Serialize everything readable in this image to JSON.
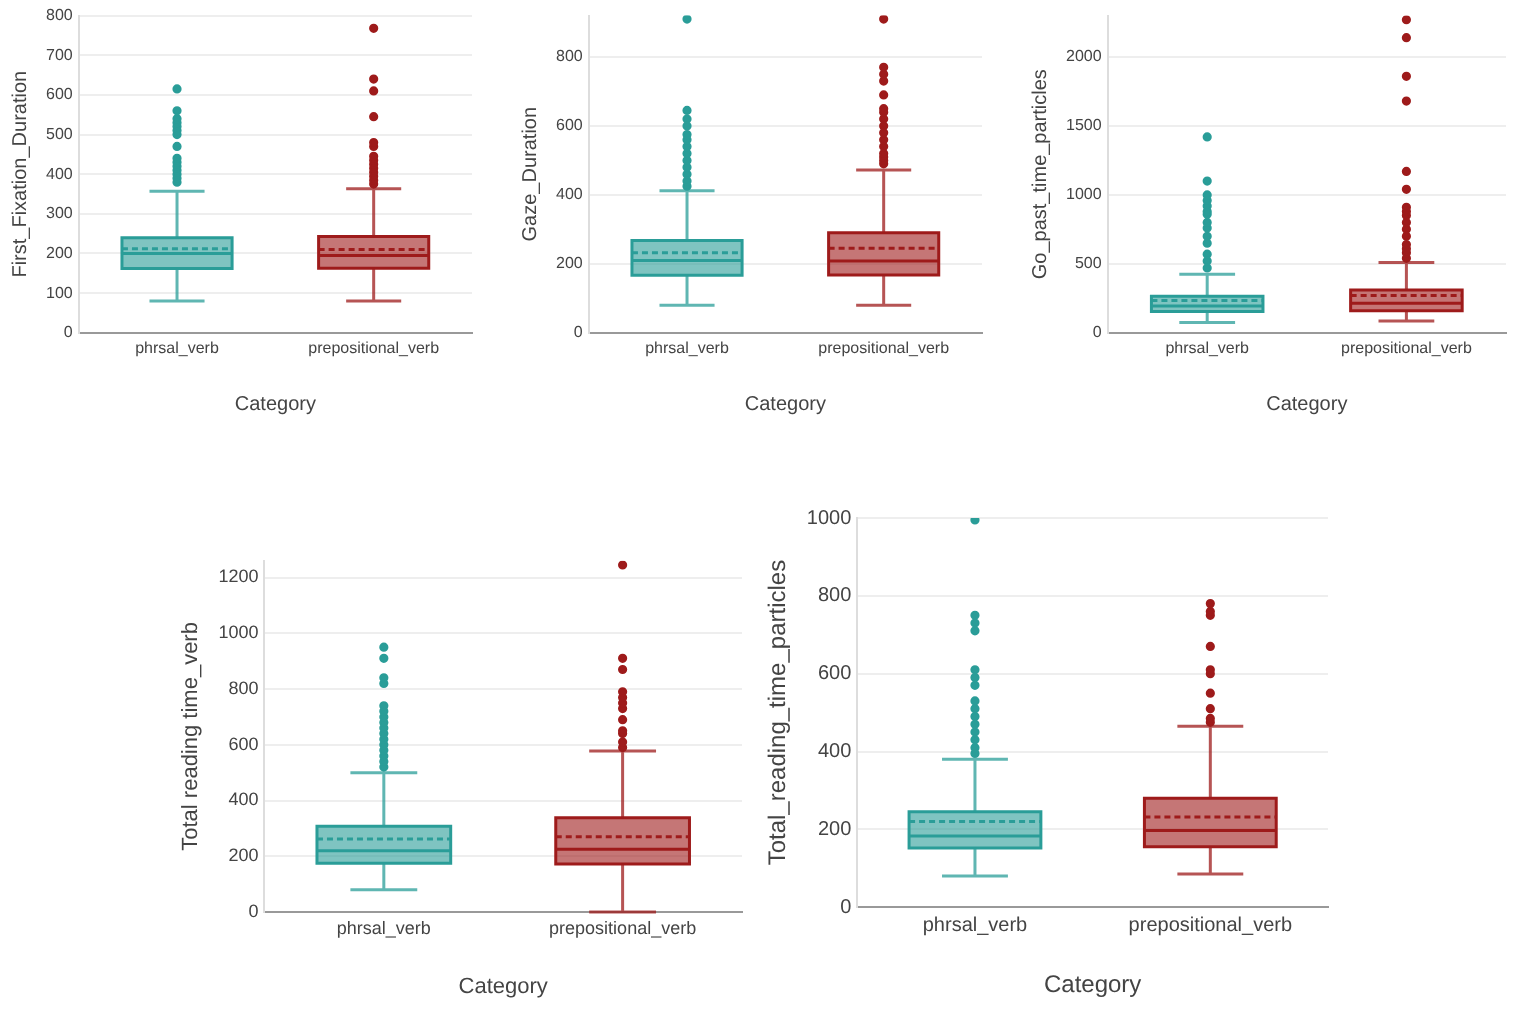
{
  "chart_data": [
    {
      "type": "box",
      "categories": [
        "phrsal_verb",
        "prepositional_verb"
      ],
      "colors": [
        "#2a9d98",
        "#9e1b1b"
      ],
      "xlabel": "Category",
      "ylabel": "First_Fixation_Duration",
      "ylim": [
        0,
        800
      ],
      "yticks": [
        0,
        100,
        200,
        300,
        400,
        500,
        600,
        700,
        800
      ],
      "grid": "y",
      "boxes": [
        {
          "low": 80,
          "q1": 162,
          "median": 200,
          "q3": 240,
          "high": 357,
          "mean": 212,
          "outliers": [
            380,
            390,
            400,
            410,
            420,
            430,
            440,
            470,
            500,
            510,
            520,
            530,
            540,
            560,
            615
          ]
        },
        {
          "low": 80,
          "q1": 163,
          "median": 195,
          "q3": 243,
          "high": 363,
          "mean": 210,
          "outliers": [
            375,
            385,
            395,
            405,
            415,
            425,
            435,
            445,
            470,
            480,
            545,
            610,
            640,
            768
          ]
        }
      ]
    },
    {
      "type": "box",
      "categories": [
        "phrsal_verb",
        "prepositional_verb"
      ],
      "colors": [
        "#2a9d98",
        "#9e1b1b"
      ],
      "xlabel": "Category",
      "ylabel": "Gaze_Duration",
      "ylim": [
        0,
        920
      ],
      "yticks": [
        0,
        200,
        400,
        600,
        800
      ],
      "grid": "y",
      "boxes": [
        {
          "low": 80,
          "q1": 167,
          "median": 210,
          "q3": 268,
          "high": 412,
          "mean": 232,
          "outliers": [
            425,
            440,
            460,
            480,
            500,
            520,
            540,
            560,
            575,
            600,
            620,
            645,
            910
          ]
        },
        {
          "low": 80,
          "q1": 168,
          "median": 208,
          "q3": 290,
          "high": 472,
          "mean": 245,
          "outliers": [
            490,
            500,
            510,
            520,
            540,
            560,
            580,
            600,
            620,
            640,
            650,
            690,
            730,
            750,
            770,
            910
          ]
        }
      ]
    },
    {
      "type": "box",
      "categories": [
        "phrsal_verb",
        "prepositional_verb"
      ],
      "colors": [
        "#2a9d98",
        "#9e1b1b"
      ],
      "xlabel": "Category",
      "ylabel": "Go_past_time_particles",
      "ylim": [
        0,
        2300
      ],
      "yticks": [
        0,
        500,
        1000,
        1500,
        2000
      ],
      "grid": "y",
      "boxes": [
        {
          "low": 75,
          "q1": 155,
          "median": 195,
          "q3": 265,
          "high": 425,
          "mean": 235,
          "outliers": [
            470,
            520,
            570,
            650,
            700,
            760,
            800,
            860,
            880,
            920,
            960,
            1000,
            1100,
            1420
          ]
        },
        {
          "low": 85,
          "q1": 160,
          "median": 215,
          "q3": 310,
          "high": 510,
          "mean": 270,
          "outliers": [
            540,
            580,
            610,
            640,
            700,
            750,
            800,
            850,
            880,
            910,
            1040,
            1170,
            1680,
            1860,
            2140,
            2270
          ]
        }
      ]
    },
    {
      "type": "box",
      "categories": [
        "phrsal_verb",
        "prepositional_verb"
      ],
      "colors": [
        "#2a9d98",
        "#9e1b1b"
      ],
      "xlabel": "Category",
      "ylabel": "Total reading time_verb",
      "ylim": [
        0,
        1260
      ],
      "yticks": [
        0,
        200,
        400,
        600,
        800,
        1000,
        1200
      ],
      "grid": "y",
      "boxes": [
        {
          "low": 80,
          "q1": 175,
          "median": 220,
          "q3": 308,
          "high": 500,
          "mean": 262,
          "outliers": [
            520,
            540,
            560,
            580,
            600,
            620,
            640,
            660,
            680,
            700,
            720,
            740,
            820,
            840,
            910,
            950
          ]
        },
        {
          "low": 0,
          "q1": 172,
          "median": 225,
          "q3": 338,
          "high": 578,
          "mean": 270,
          "outliers": [
            590,
            610,
            640,
            650,
            690,
            730,
            750,
            770,
            790,
            870,
            910,
            1245
          ]
        }
      ]
    },
    {
      "type": "box",
      "categories": [
        "phrsal_verb",
        "prepositional_verb"
      ],
      "colors": [
        "#2a9d98",
        "#9e1b1b"
      ],
      "xlabel": "Category",
      "ylabel": "Total_reading_time_particles",
      "ylim": [
        0,
        1000
      ],
      "yticks": [
        0,
        200,
        400,
        600,
        800,
        1000
      ],
      "grid": "y",
      "boxes": [
        {
          "low": 80,
          "q1": 152,
          "median": 183,
          "q3": 245,
          "high": 380,
          "mean": 220,
          "outliers": [
            395,
            410,
            430,
            450,
            470,
            490,
            510,
            530,
            570,
            590,
            610,
            710,
            730,
            750,
            995
          ]
        },
        {
          "low": 85,
          "q1": 155,
          "median": 197,
          "q3": 280,
          "high": 465,
          "mean": 232,
          "outliers": [
            475,
            485,
            510,
            550,
            600,
            610,
            670,
            750,
            760,
            780
          ]
        }
      ]
    }
  ]
}
